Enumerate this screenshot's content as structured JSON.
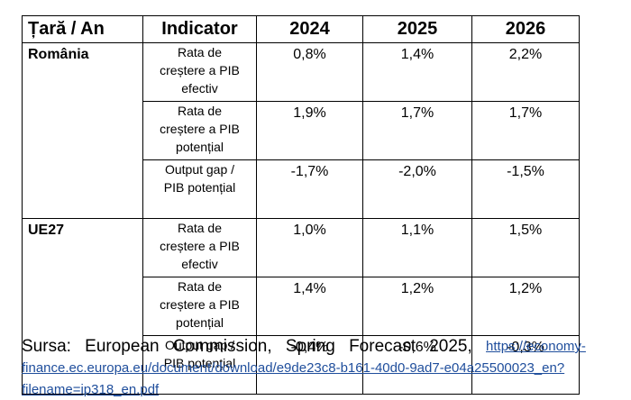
{
  "table": {
    "headers": [
      "Țară / An",
      "Indicator",
      "2024",
      "2025",
      "2026"
    ],
    "groups": [
      {
        "country": "România",
        "rows": [
          {
            "indicator": [
              "Rata de",
              "creștere a PIB",
              "efectiv"
            ],
            "values": [
              "0,8%",
              "1,4%",
              "2,2%"
            ]
          },
          {
            "indicator": [
              "Rata de",
              "creștere a PIB",
              "potențial"
            ],
            "values": [
              "1,9%",
              "1,7%",
              "1,7%"
            ]
          },
          {
            "indicator": [
              "Output gap /",
              "PIB potențial"
            ],
            "values": [
              "-1,7%",
              "-2,0%",
              "-1,5%"
            ]
          }
        ]
      },
      {
        "country": "UE27",
        "rows": [
          {
            "indicator": [
              "Rata de",
              "creștere a PIB",
              "efectiv"
            ],
            "values": [
              "1,0%",
              "1,1%",
              "1,5%"
            ]
          },
          {
            "indicator": [
              "Rata de",
              "creștere a PIB",
              "potențial"
            ],
            "values": [
              "1,4%",
              "1,2%",
              "1,2%"
            ]
          },
          {
            "indicator": [
              "Output gap /",
              "PIB potențial"
            ],
            "values": [
              "-0,4%",
              "-0,6%",
              "-0,3%"
            ]
          }
        ]
      }
    ]
  },
  "source": {
    "words": [
      "Sursa:",
      "European",
      "Commission,",
      "Spring",
      "Forecast",
      "2025,"
    ],
    "link_lines": [
      "https://economy-",
      "finance.ec.europa.eu/document/download/e9de23c8-b161-40d0-9ad7-e04a25500023_en?",
      "filename=ip318_en.pdf"
    ]
  }
}
